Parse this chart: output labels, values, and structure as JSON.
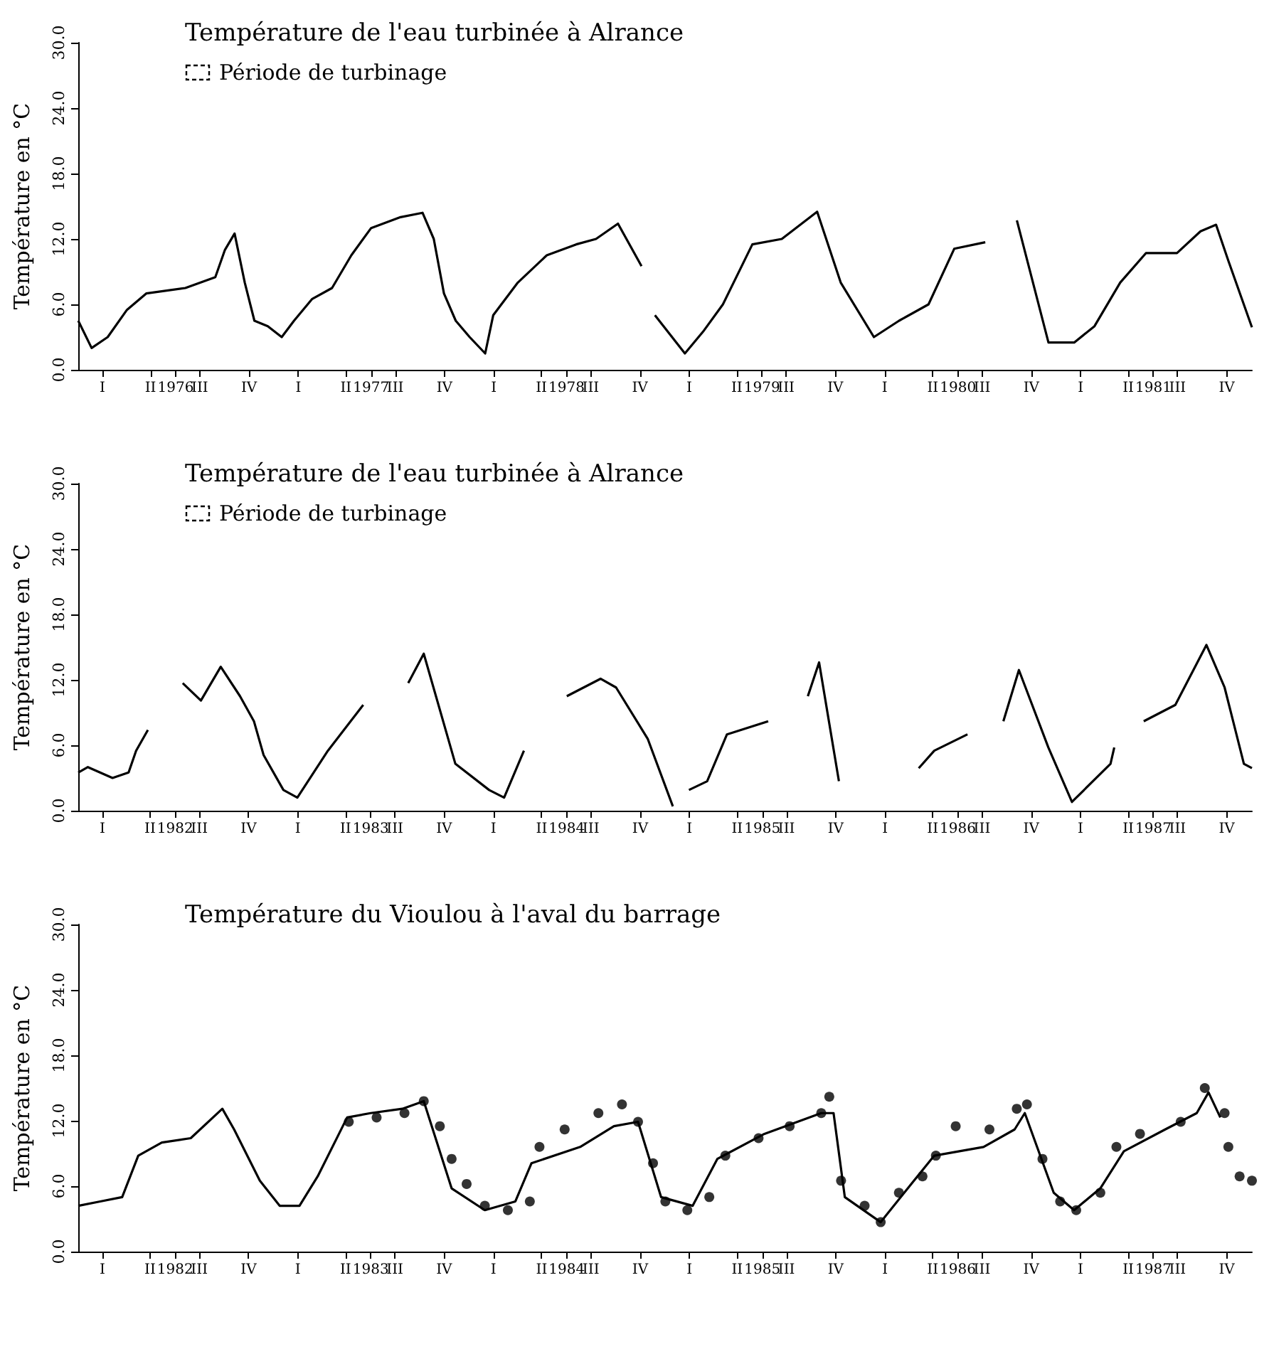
{
  "chart_data": [
    {
      "type": "line",
      "title": "Température de l'eau turbinée à Alrance",
      "ylabel": "Température en °C",
      "annotations": [
        "Période de turbinage"
      ],
      "xlim": [
        "1976-01-01",
        "1982-01-01"
      ],
      "ylim": [
        0,
        30
      ],
      "yticks": [
        {
          "value": 0,
          "label": "0.0"
        },
        {
          "value": 6,
          "label": "6.0"
        },
        {
          "value": 12,
          "label": "12.0"
        },
        {
          "value": 18,
          "label": "18.0"
        },
        {
          "value": 24,
          "label": "24.0"
        },
        {
          "value": 30,
          "label": "30.0"
        }
      ],
      "xticks": [
        {
          "value": "1976-02-15",
          "label": "I"
        },
        {
          "value": "1976-05-15",
          "label": "II"
        },
        {
          "value": "1976-07-01",
          "label": "1976"
        },
        {
          "value": "1976-08-15",
          "label": "III"
        },
        {
          "value": "1976-11-15",
          "label": "IV"
        },
        {
          "value": "1977-02-15",
          "label": "I"
        },
        {
          "value": "1977-05-15",
          "label": "II"
        },
        {
          "value": "1977-07-01",
          "label": "1977"
        },
        {
          "value": "1977-08-15",
          "label": "III"
        },
        {
          "value": "1977-11-15",
          "label": "IV"
        },
        {
          "value": "1978-02-15",
          "label": "I"
        },
        {
          "value": "1978-05-15",
          "label": "II"
        },
        {
          "value": "1978-07-01",
          "label": "1978"
        },
        {
          "value": "1978-08-15",
          "label": "III"
        },
        {
          "value": "1978-11-15",
          "label": "IV"
        },
        {
          "value": "1979-02-15",
          "label": "I"
        },
        {
          "value": "1979-05-15",
          "label": "II"
        },
        {
          "value": "1979-07-01",
          "label": "1979"
        },
        {
          "value": "1979-08-15",
          "label": "III"
        },
        {
          "value": "1979-11-15",
          "label": "IV"
        },
        {
          "value": "1980-02-15",
          "label": "I"
        },
        {
          "value": "1980-05-15",
          "label": "II"
        },
        {
          "value": "1980-07-01",
          "label": "1980"
        },
        {
          "value": "1980-08-15",
          "label": "III"
        },
        {
          "value": "1980-11-15",
          "label": "IV"
        },
        {
          "value": "1981-02-15",
          "label": "I"
        },
        {
          "value": "1981-05-15",
          "label": "II"
        },
        {
          "value": "1981-07-01",
          "label": "1981"
        },
        {
          "value": "1981-08-15",
          "label": "III"
        },
        {
          "value": "1981-11-15",
          "label": "IV"
        }
      ],
      "series": [
        {
          "color": "#000000",
          "x": [
            "1976-01-01",
            "1976-01-26",
            "1976-02-25",
            "1976-04-01",
            "1976-05-07",
            "1976-07-19",
            "1976-09-13",
            "1976-10-01",
            "1976-10-19",
            "1976-11-07",
            "1976-11-25",
            "1976-12-20",
            "1977-01-15",
            "1977-02-07",
            "1977-03-13",
            "1977-04-19",
            "1977-05-25",
            "1977-07-01",
            "1977-08-25",
            "1977-10-05",
            "1977-10-26",
            "1977-11-14",
            "1977-12-06",
            "1978-01-01",
            "1978-01-30",
            "1978-02-14",
            "1978-04-01",
            "1978-05-25",
            "1978-07-19",
            "1978-08-25",
            "1978-10-05",
            "1978-11-18",
            "1978-11-25",
            "1978-12-13",
            "1979-02-07",
            "1979-03-13",
            "1979-04-19",
            "1979-06-13",
            "1979-08-07",
            "1979-10-12",
            "1979-11-25",
            "1980-01-26",
            "1980-03-13",
            "1980-05-07",
            "1980-06-24",
            "1980-08-21",
            "1980-09-13",
            "1980-10-19",
            "1980-12-17",
            "1981-02-03",
            "1981-03-13",
            "1981-04-30",
            "1981-06-17",
            "1981-08-14",
            "1981-09-27",
            "1981-10-26",
            "1981-11-18",
            "1982-01-01"
          ],
          "values": [
            4.5,
            2.0,
            3.0,
            5.5,
            7.0,
            7.5,
            8.5,
            11.0,
            12.5,
            8.0,
            4.5,
            4.0,
            3.0,
            4.5,
            6.5,
            7.5,
            10.5,
            13.0,
            14.0,
            14.4,
            12.0,
            7.0,
            4.5,
            3.0,
            1.5,
            5.0,
            8.0,
            10.5,
            11.5,
            12.0,
            13.4,
            9.5,
            null,
            5.0,
            1.5,
            3.5,
            6.0,
            11.5,
            12.0,
            14.5,
            8.0,
            3.0,
            4.5,
            6.0,
            11.1,
            11.7,
            null,
            13.7,
            2.5,
            2.5,
            4.0,
            8.0,
            10.7,
            10.7,
            12.7,
            13.3,
            10.0,
            3.9
          ]
        }
      ]
    },
    {
      "type": "line",
      "title": "Température de l'eau turbinée à Alrance",
      "ylabel": "Température en °C",
      "annotations": [
        "Période de turbinage"
      ],
      "xlim": [
        "1982-01-01",
        "1988-01-01"
      ],
      "ylim": [
        0,
        30
      ],
      "yticks": [
        {
          "value": 0,
          "label": "0.0"
        },
        {
          "value": 6,
          "label": "6.0"
        },
        {
          "value": 12,
          "label": "12.0"
        },
        {
          "value": 18,
          "label": "18.0"
        },
        {
          "value": 24,
          "label": "24.0"
        },
        {
          "value": 30,
          "label": "30.0"
        }
      ],
      "xticks": [
        {
          "value": "1982-02-15",
          "label": "I"
        },
        {
          "value": "1982-05-15",
          "label": "II"
        },
        {
          "value": "1982-07-01",
          "label": "1982"
        },
        {
          "value": "1982-08-15",
          "label": "III"
        },
        {
          "value": "1982-11-15",
          "label": "IV"
        },
        {
          "value": "1983-02-15",
          "label": "I"
        },
        {
          "value": "1983-05-15",
          "label": "II"
        },
        {
          "value": "1983-07-01",
          "label": "1983"
        },
        {
          "value": "1983-08-15",
          "label": "III"
        },
        {
          "value": "1983-11-15",
          "label": "IV"
        },
        {
          "value": "1984-02-15",
          "label": "I"
        },
        {
          "value": "1984-05-15",
          "label": "II"
        },
        {
          "value": "1984-07-01",
          "label": "1984"
        },
        {
          "value": "1984-08-15",
          "label": "III"
        },
        {
          "value": "1984-11-15",
          "label": "IV"
        },
        {
          "value": "1985-02-15",
          "label": "I"
        },
        {
          "value": "1985-05-15",
          "label": "II"
        },
        {
          "value": "1985-07-01",
          "label": "1985"
        },
        {
          "value": "1985-08-15",
          "label": "III"
        },
        {
          "value": "1985-11-15",
          "label": "IV"
        },
        {
          "value": "1986-02-15",
          "label": "I"
        },
        {
          "value": "1986-05-15",
          "label": "II"
        },
        {
          "value": "1986-07-01",
          "label": "1986"
        },
        {
          "value": "1986-08-15",
          "label": "III"
        },
        {
          "value": "1986-11-15",
          "label": "IV"
        },
        {
          "value": "1987-02-15",
          "label": "I"
        },
        {
          "value": "1987-05-15",
          "label": "II"
        },
        {
          "value": "1987-07-01",
          "label": "1987"
        },
        {
          "value": "1987-08-15",
          "label": "III"
        },
        {
          "value": "1987-11-15",
          "label": "IV"
        }
      ],
      "series": [
        {
          "color": "#000000",
          "x": [
            "1982-01-01",
            "1982-01-19",
            "1982-03-06",
            "1982-04-05",
            "1982-04-19",
            "1982-05-11",
            "1982-06-13",
            "1982-07-15",
            "1982-08-18",
            "1982-09-24",
            "1982-10-30",
            "1982-11-25",
            "1982-12-13",
            "1983-01-19",
            "1983-02-14",
            "1983-04-12",
            "1983-06-17",
            "1983-08-07",
            "1983-09-09",
            "1983-10-08",
            "1983-12-06",
            "1984-02-07",
            "1984-03-06",
            "1984-04-12",
            "1984-05-25",
            "1984-07-01",
            "1984-09-02",
            "1984-10-01",
            "1984-11-29",
            "1985-01-15",
            "1985-01-30",
            "1985-02-14",
            "1985-03-20",
            "1985-04-26",
            "1985-07-12",
            "1985-08-25",
            "1985-09-24",
            "1985-10-15",
            "1985-11-21",
            "1986-02-07",
            "1986-04-19",
            "1986-05-18",
            "1986-07-19",
            "1986-08-25",
            "1986-09-24",
            "1986-10-23",
            "1986-12-17",
            "1987-01-30",
            "1987-04-12",
            "1987-04-19",
            "1987-05-18",
            "1987-06-13",
            "1987-08-11",
            "1987-10-08",
            "1987-11-11",
            "1987-12-17",
            "1988-01-01"
          ],
          "values": [
            3.5,
            4.0,
            3.0,
            3.5,
            5.5,
            7.4,
            null,
            11.7,
            10.1,
            13.2,
            10.5,
            8.2,
            5.1,
            1.9,
            1.2,
            5.5,
            9.7,
            null,
            11.7,
            14.4,
            4.3,
            1.9,
            1.2,
            5.5,
            null,
            10.5,
            12.1,
            11.3,
            6.6,
            0.4,
            null,
            1.9,
            2.7,
            7.0,
            8.2,
            null,
            10.5,
            13.6,
            2.7,
            null,
            3.9,
            5.5,
            7.0,
            null,
            8.2,
            12.9,
            5.8,
            0.8,
            4.3,
            5.8,
            null,
            8.2,
            9.7,
            15.2,
            11.3,
            4.3,
            3.9
          ]
        }
      ]
    },
    {
      "type": "line",
      "title": "Température du Vioulou à l'aval du barrage",
      "ylabel": "Température en °C",
      "xlim": [
        "1982-01-01",
        "1988-01-01"
      ],
      "ylim": [
        0,
        30
      ],
      "yticks": [
        {
          "value": 0,
          "label": "0.0"
        },
        {
          "value": 6,
          "label": "6.0"
        },
        {
          "value": 12,
          "label": "12.0"
        },
        {
          "value": 18,
          "label": "18.0"
        },
        {
          "value": 24,
          "label": "24.0"
        },
        {
          "value": 30,
          "label": "30.0"
        }
      ],
      "xticks": [
        {
          "value": "1982-02-15",
          "label": "I"
        },
        {
          "value": "1982-05-15",
          "label": "II"
        },
        {
          "value": "1982-07-01",
          "label": "1982"
        },
        {
          "value": "1982-08-15",
          "label": "III"
        },
        {
          "value": "1982-11-15",
          "label": "IV"
        },
        {
          "value": "1983-02-15",
          "label": "I"
        },
        {
          "value": "1983-05-15",
          "label": "II"
        },
        {
          "value": "1983-07-01",
          "label": "1983"
        },
        {
          "value": "1983-08-15",
          "label": "III"
        },
        {
          "value": "1983-11-15",
          "label": "IV"
        },
        {
          "value": "1984-02-15",
          "label": "I"
        },
        {
          "value": "1984-05-15",
          "label": "II"
        },
        {
          "value": "1984-07-01",
          "label": "1984"
        },
        {
          "value": "1984-08-15",
          "label": "III"
        },
        {
          "value": "1984-11-15",
          "label": "IV"
        },
        {
          "value": "1985-02-15",
          "label": "I"
        },
        {
          "value": "1985-05-15",
          "label": "II"
        },
        {
          "value": "1985-07-01",
          "label": "1985"
        },
        {
          "value": "1985-08-15",
          "label": "III"
        },
        {
          "value": "1985-11-15",
          "label": "IV"
        },
        {
          "value": "1986-02-15",
          "label": "I"
        },
        {
          "value": "1986-05-15",
          "label": "II"
        },
        {
          "value": "1986-07-01",
          "label": "1986"
        },
        {
          "value": "1986-08-15",
          "label": "III"
        },
        {
          "value": "1986-11-15",
          "label": "IV"
        },
        {
          "value": "1987-02-15",
          "label": "I"
        },
        {
          "value": "1987-05-15",
          "label": "II"
        },
        {
          "value": "1987-07-01",
          "label": "1987"
        },
        {
          "value": "1987-08-15",
          "label": "III"
        },
        {
          "value": "1987-11-15",
          "label": "IV"
        }
      ],
      "series": [
        {
          "color": "#000000",
          "x": [
            "1982-01-01",
            "1982-02-11",
            "1982-03-24",
            "1982-04-23",
            "1982-06-06",
            "1982-07-30",
            "1982-09-27",
            "1982-10-19",
            "1982-12-06",
            "1983-01-12",
            "1983-02-18",
            "1983-03-24",
            "1983-05-18",
            "1983-07-01",
            "1983-08-29",
            "1983-10-08",
            "1983-11-29",
            "1984-01-30",
            "1984-03-27",
            "1984-04-26",
            "1984-07-26",
            "1984-09-27",
            "1984-11-11",
            "1984-12-24",
            "1985-02-21",
            "1985-04-08",
            "1985-07-05",
            "1985-10-19",
            "1985-11-11",
            "1985-12-02",
            "1986-02-07",
            "1986-04-05",
            "1986-05-18",
            "1986-08-18",
            "1986-10-15",
            "1986-11-03",
            "1986-12-27",
            "1987-02-03",
            "1987-03-24",
            "1987-05-07",
            "1987-07-23",
            "1987-09-20",
            "1987-10-12",
            "1987-11-03"
          ],
          "values": [
            4.2,
            4.6,
            5.0,
            8.8,
            10.0,
            10.4,
            13.1,
            11.2,
            6.5,
            4.2,
            4.2,
            6.9,
            12.3,
            12.7,
            13.1,
            13.8,
            5.8,
            3.8,
            4.6,
            8.1,
            9.6,
            11.5,
            11.9,
            5.0,
            4.2,
            8.5,
            10.8,
            12.7,
            12.7,
            5.0,
            2.7,
            6.2,
            8.8,
            9.6,
            11.2,
            12.7,
            5.4,
            3.8,
            5.8,
            9.2,
            11.2,
            12.7,
            14.6,
            12.3
          ]
        },
        {
          "type": "scatter",
          "marker": "circle",
          "color": "#000000",
          "x": [
            "1983-05-21",
            "1983-07-12",
            "1983-09-02",
            "1983-10-08",
            "1983-11-07",
            "1983-11-29",
            "1983-12-27",
            "1984-01-30",
            "1984-03-13",
            "1984-04-23",
            "1984-05-11",
            "1984-06-27",
            "1984-08-29",
            "1984-10-12",
            "1984-11-11",
            "1984-12-09",
            "1985-01-01",
            "1985-02-11",
            "1985-03-24",
            "1985-04-23",
            "1985-06-24",
            "1985-08-21",
            "1985-10-19",
            "1985-11-03",
            "1985-11-25",
            "1986-01-08",
            "1986-02-07",
            "1986-03-13",
            "1986-04-26",
            "1986-05-21",
            "1986-06-27",
            "1986-08-29",
            "1986-10-19",
            "1986-11-07",
            "1986-12-06",
            "1987-01-08",
            "1987-02-07",
            "1987-03-24",
            "1987-04-23",
            "1987-06-06",
            "1987-08-21",
            "1987-10-05",
            "1987-11-11",
            "1987-11-18",
            "1987-12-09",
            "1988-01-01"
          ],
          "values": [
            11.9,
            12.3,
            12.7,
            13.8,
            11.5,
            8.5,
            6.2,
            4.2,
            3.8,
            4.6,
            9.6,
            11.2,
            12.7,
            13.5,
            11.9,
            8.1,
            4.6,
            3.8,
            5.0,
            8.8,
            10.4,
            11.5,
            12.7,
            14.2,
            6.5,
            4.2,
            2.7,
            5.4,
            6.9,
            8.8,
            11.5,
            11.2,
            13.1,
            13.5,
            8.5,
            4.6,
            3.8,
            5.4,
            9.6,
            10.8,
            11.9,
            15.0,
            12.7,
            9.6,
            6.9,
            6.5
          ]
        }
      ]
    }
  ]
}
